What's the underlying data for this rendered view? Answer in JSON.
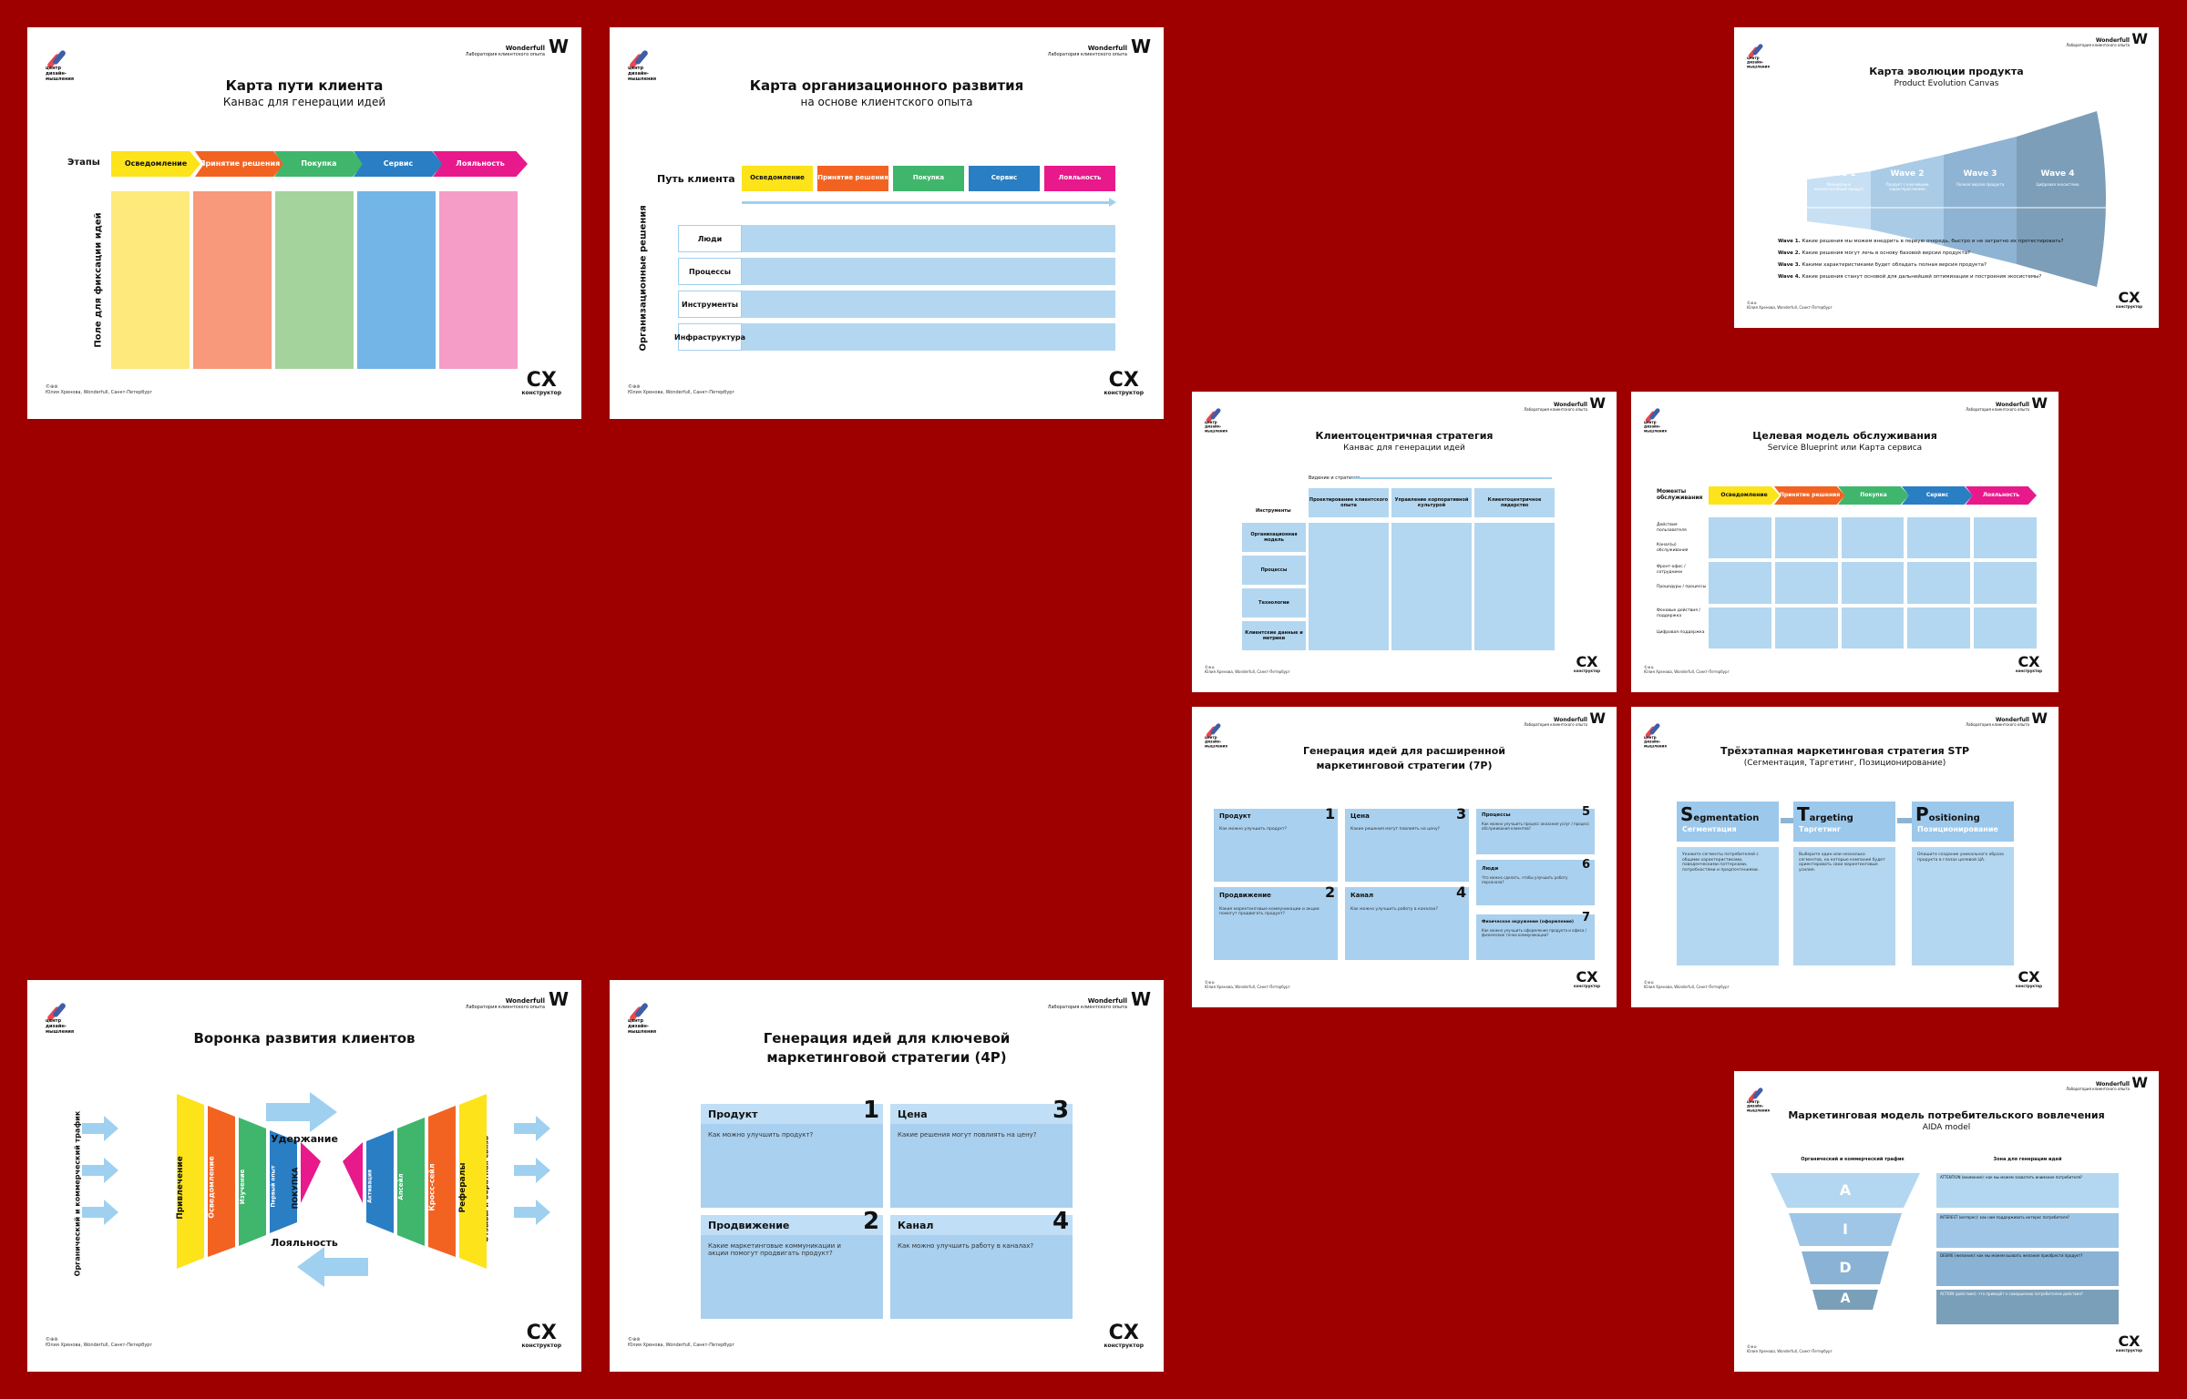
{
  "brand": {
    "logo_text": "центр дизайн-мышления",
    "partner_name": "Wonderfull",
    "partner_desc": "Лаборатория клиентского опыта",
    "partner_mark": "W",
    "cx_mark": "CX",
    "cx_sub": "конструктор",
    "license": "©⊕⊜",
    "license_text": "Юлия Хренова, Wonderfull, Санкт-Петербург"
  },
  "colors": {
    "background": "#9e0000",
    "yellow": "#fde31a",
    "orange": "#f26322",
    "green": "#3fb66b",
    "blue": "#2a7ec3",
    "pink": "#e8198b",
    "light_blue": "#b3d7f0"
  },
  "cjm": {
    "title": "Карта пути клиента",
    "subtitle": "Канвас для генерации идей",
    "stages_label": "Этапы",
    "stages": [
      "Осведомление",
      "Принятие решения",
      "Покупка",
      "Сервис",
      "Лояльность"
    ],
    "field_label": "Поле для фиксации идей"
  },
  "org": {
    "title": "Карта организационного развития",
    "subtitle": "на основе клиентского опыта",
    "path_label": "Путь клиента",
    "stages": [
      "Осведомление",
      "Принятие решения",
      "Покупка",
      "Сервис",
      "Лояльность"
    ],
    "side_label": "Организационные решения",
    "rows": [
      "Люди",
      "Процессы",
      "Инструменты",
      "Инфраструктура"
    ]
  },
  "evolution": {
    "title": "Карта эволюции продукта",
    "subtitle": "Product Evolution Canvas",
    "waves": [
      "Wave 1",
      "Wave 2",
      "Wave 3",
      "Wave 4"
    ],
    "wave_desc": [
      "Минимально жизнеспособный продукт",
      "Продукт с ключевыми характеристиками",
      "Полная версия продукта",
      "Цифровая экосистема"
    ],
    "q1_b": "Wave 1.",
    "q1": "Какие решения мы можем внедрить в первую очередь, быстро и не затратно их протестировать?",
    "q2_b": "Wave 2.",
    "q2": "Какие решения могут лечь в основу базовой версии продукта?",
    "q3_b": "Wave 3.",
    "q3": "Какими характеристиками будет обладать полная версия продукта?",
    "q4_b": "Wave 4.",
    "q4": "Какие решения станут основой для дальнейшей оптимизации и построения экосистемы?"
  },
  "strategy": {
    "title": "Клиентоцентричная стратегия",
    "subtitle": "Канвас для генерации идей",
    "vision": "Видение и стратегия",
    "tools": "Инструменты",
    "cols": [
      "Проектирование клиентского опыта",
      "Управление корпоративной культурой",
      "Клиентоцентричное лидерство"
    ],
    "rows": [
      "Организационная модель",
      "Процессы",
      "Технологии",
      "Клиентские данные и метрики"
    ]
  },
  "blueprint": {
    "title": "Целевая модель обслуживания",
    "subtitle": "Service Blueprint или Карта сервиса",
    "moments": "Моменты обслуживания",
    "stages": [
      "Осведомление",
      "Принятие решения",
      "Покупка",
      "Сервис",
      "Лояльность"
    ],
    "rows": [
      "Действия пользователя",
      "Канал(ы) обслуживания",
      "Фронт-офис / сотрудники",
      "Процедуры / процессы",
      "Фоновые действия / поддержка",
      "Цифровая поддержка"
    ]
  },
  "mix7p": {
    "title_1": "Генерация идей для расширенной",
    "title_2": "маркетинговой стратегии (7P)",
    "cells": [
      {
        "name": "Продукт",
        "n": "1",
        "q": "Как можно улучшить продукт?"
      },
      {
        "name": "Цена",
        "n": "3",
        "q": "Какие решения могут повлиять на цену?"
      },
      {
        "name": "Процессы",
        "n": "5",
        "q": "Как можно улучшить процесс оказания услуг / процесс обслуживания клиентов?"
      },
      {
        "name": "Продвижение",
        "n": "2",
        "q": "Какие маркетинговые коммуникации и акции помогут продвигать продукт?"
      },
      {
        "name": "Канал",
        "n": "4",
        "q": "Как можно улучшить работу в каналах?"
      },
      {
        "name": "Люди",
        "n": "6",
        "q": "Что можно сделать, чтобы улучшить работу персонала?"
      },
      {
        "name": "Физическое окружение (оформление)",
        "n": "7",
        "q": "Как можно улучшить оформление продукта и офиса / физические точки коммуникации?"
      }
    ]
  },
  "stp": {
    "title": "Трёхэтапная маркетинговая стратегия STP",
    "subtitle": "(Сегментация, Таргетинг, Позиционирование)",
    "cols": [
      {
        "cap": "S",
        "rest": "egmentation",
        "ru": "Сегментация",
        "q": "Укажите сегменты потребителей с общими характеристиками, поведенческими паттернами, потребностями и предпочтениями."
      },
      {
        "cap": "T",
        "rest": "argeting",
        "ru": "Таргетинг",
        "q": "Выберите один или несколько сегментов, на которые компания будет ориентировать свои маркетинговые усилия."
      },
      {
        "cap": "P",
        "rest": "ositioning",
        "ru": "Позиционирование",
        "q": "Опишите создание уникального образа продукта в глазах целевой ЦА."
      }
    ]
  },
  "funnel": {
    "title": "Воронка развития клиентов",
    "left_label": "Органический и коммерческий трафик",
    "right_label": "Отзывы и обратная связь",
    "retention": "Удержание",
    "loyalty": "Лояльность",
    "stages": [
      "Привлечение",
      "Осведомление",
      "Изучение",
      "Первый опыт",
      "ПОКУПКА",
      "Активация",
      "Апсейл",
      "Кросс-сейл",
      "Рефералы"
    ]
  },
  "mix4p": {
    "title_1": "Генерация идей для ключевой",
    "title_2": "маркетинговой стратегии (4P)",
    "cells": [
      {
        "name": "Продукт",
        "n": "1",
        "q": "Как можно улучшить продукт?"
      },
      {
        "name": "Цена",
        "n": "3",
        "q": "Какие решения могут повлиять на цену?"
      },
      {
        "name": "Продвижение",
        "n": "2",
        "q": "Какие маркетинговые коммуникации и акции помогут продвигать продукт?"
      },
      {
        "name": "Канал",
        "n": "4",
        "q": "Как можно улучшить работу в каналах?"
      }
    ]
  },
  "aida": {
    "title": "Маркетинговая модель потребительского вовлечения",
    "subtitle": "AIDA model",
    "left_label": "Органический и коммерческий трафик",
    "right_label": "Зона для генерации идей",
    "letters": [
      "A",
      "I",
      "D",
      "A"
    ],
    "rows": [
      "ATTENTION (внимание): как мы можем захватить внимание потребителя?",
      "INTEREST (интерес): как нам поддерживать интерес потребителя?",
      "DESIRE (желание): как мы можем вызвать желание приобрести продукт?",
      "ACTION (действие): что приведёт к совершению потребителем действия?"
    ]
  }
}
